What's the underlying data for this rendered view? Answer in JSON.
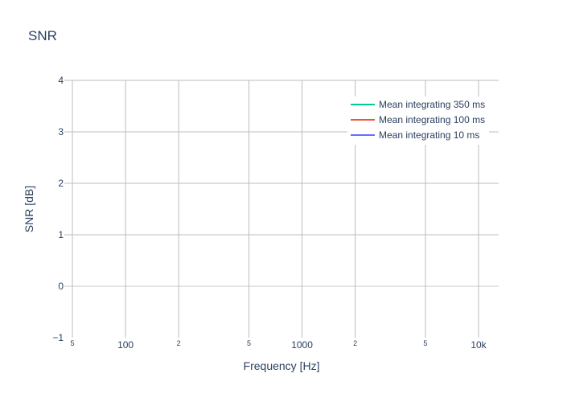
{
  "chart_data": {
    "type": "line",
    "title": "SNR",
    "xlabel": "Frequency [Hz]",
    "ylabel": "SNR [dB]",
    "x_scale": "log",
    "xlim": [
      45,
      13000
    ],
    "ylim": [
      -1,
      4
    ],
    "grid": true,
    "legend_position": "top-right",
    "y_ticks": [
      {
        "value": -1,
        "label": "−1"
      },
      {
        "value": 0,
        "label": "0"
      },
      {
        "value": 1,
        "label": "1"
      },
      {
        "value": 2,
        "label": "2"
      },
      {
        "value": 3,
        "label": "3"
      },
      {
        "value": 4,
        "label": "4"
      }
    ],
    "x_ticks": [
      {
        "value": 50,
        "label": "5",
        "minor": true
      },
      {
        "value": 100,
        "label": "100",
        "minor": false
      },
      {
        "value": 200,
        "label": "2",
        "minor": true
      },
      {
        "value": 500,
        "label": "5",
        "minor": true
      },
      {
        "value": 1000,
        "label": "1000",
        "minor": false
      },
      {
        "value": 2000,
        "label": "2",
        "minor": true
      },
      {
        "value": 5000,
        "label": "5",
        "minor": true
      },
      {
        "value": 10000,
        "label": "10k",
        "minor": false
      }
    ],
    "series": [
      {
        "name": "Mean integrating 350 ms",
        "color": "#00cc96",
        "x": [],
        "y": []
      },
      {
        "name": "Mean integrating 100 ms",
        "color": "#ef553b",
        "x": [],
        "y": []
      },
      {
        "name": "Mean integrating 10 ms",
        "color": "#636efa",
        "x": [],
        "y": []
      }
    ],
    "colors": {
      "text": "#2a3f5f",
      "grid": "#bdbdbd",
      "zeroline": "#e5e5e5"
    }
  }
}
